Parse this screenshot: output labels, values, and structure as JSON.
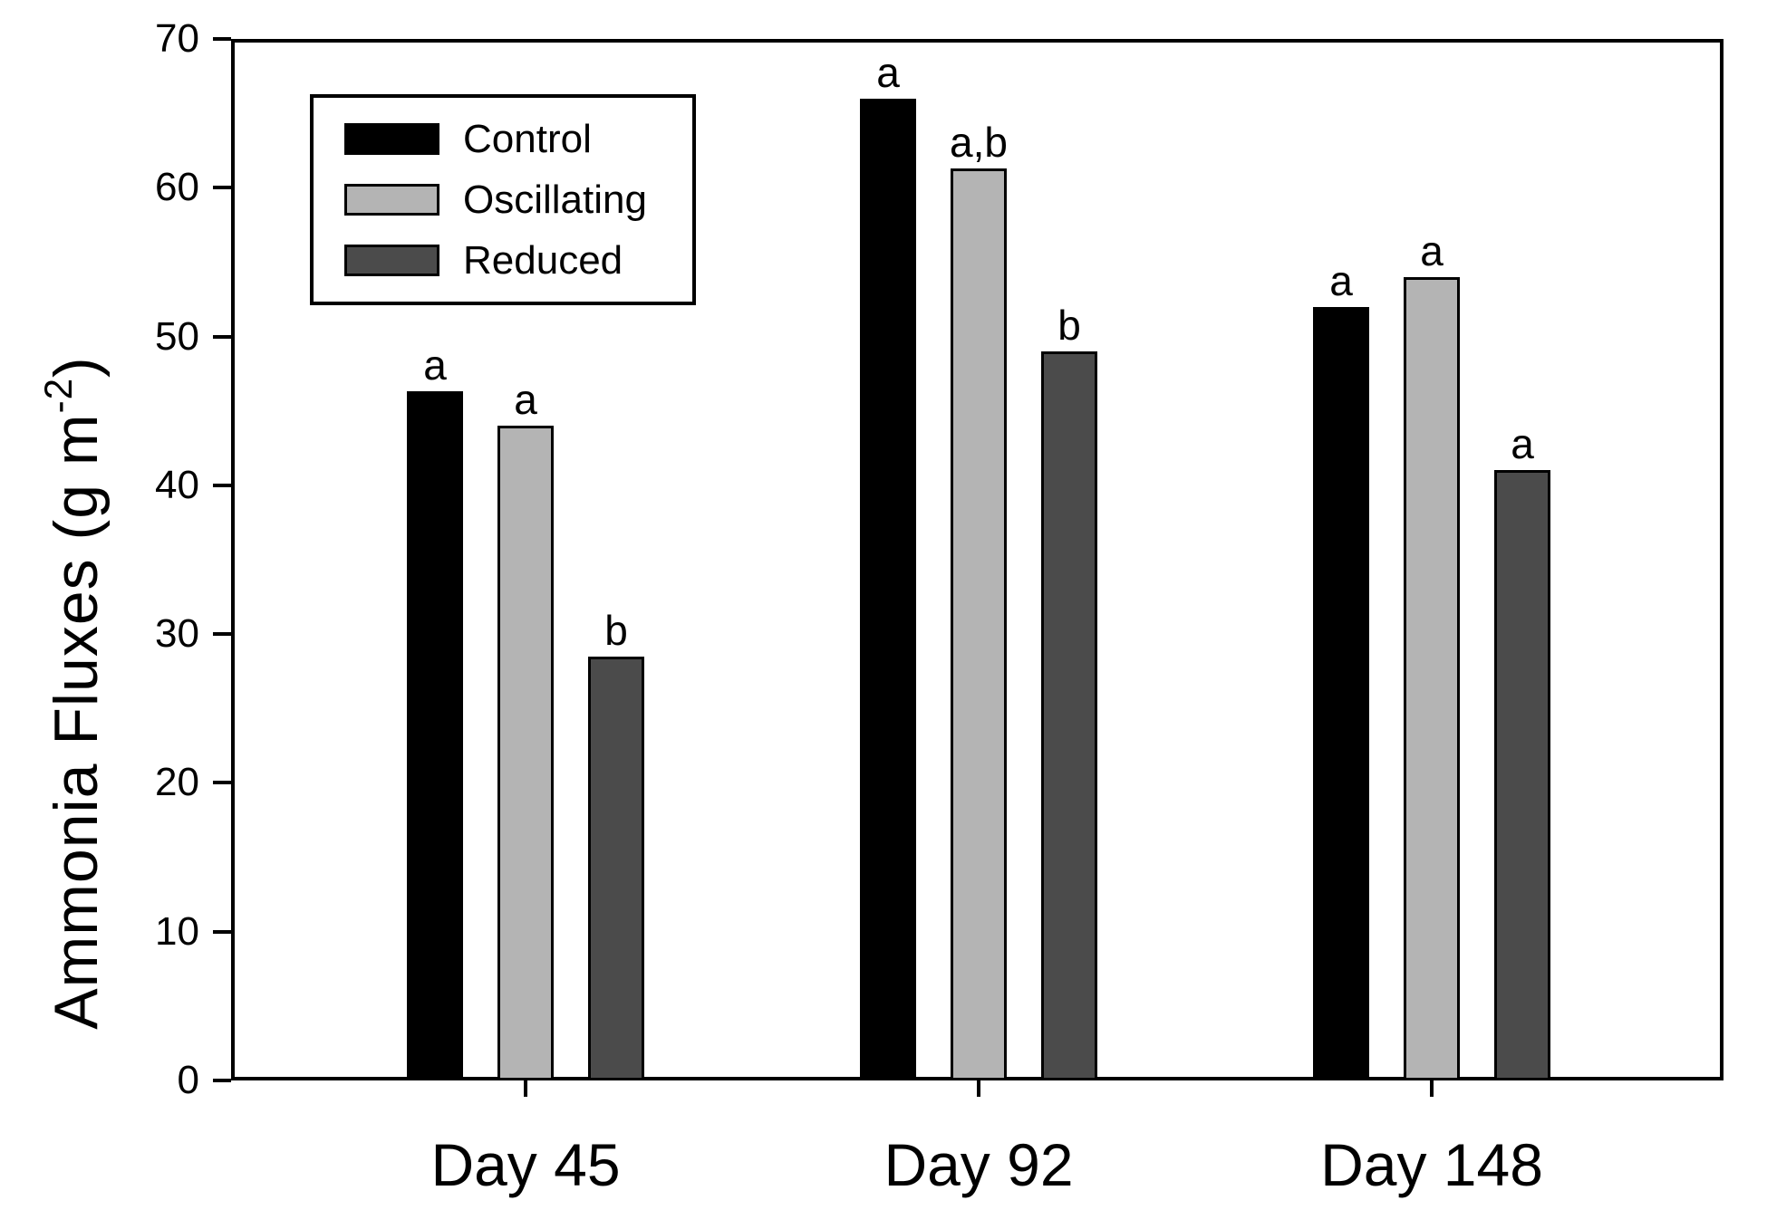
{
  "figure": {
    "ylabel": {
      "prefix": "Ammonia Fluxes (g m",
      "superscript": "-2",
      "suffix": ")"
    }
  },
  "chart_data": {
    "type": "bar",
    "title": "",
    "xlabel": "",
    "ylabel": "Ammonia Fluxes (g m^-2)",
    "ylim": [
      0,
      70
    ],
    "yticks": [
      0,
      10,
      20,
      30,
      40,
      50,
      60,
      70
    ],
    "grid": false,
    "legend_position": "upper-left",
    "categories": [
      "Day 45",
      "Day 92",
      "Day 148"
    ],
    "series": [
      {
        "name": "Control",
        "color": "#000000",
        "values": [
          46.3,
          66.0,
          52.0
        ],
        "sig_labels": [
          "a",
          "a",
          "a"
        ]
      },
      {
        "name": "Oscillating",
        "color": "#b4b4b4",
        "values": [
          44.0,
          61.3,
          54.0
        ],
        "sig_labels": [
          "a",
          "a,b",
          "a"
        ]
      },
      {
        "name": "Reduced",
        "color": "#4b4b4b",
        "values": [
          28.5,
          49.0,
          41.0
        ],
        "sig_labels": [
          "b",
          "b",
          "a"
        ]
      }
    ]
  }
}
